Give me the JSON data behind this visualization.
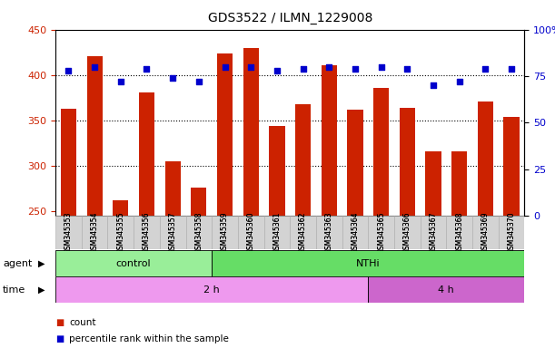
{
  "title": "GDS3522 / ILMN_1229008",
  "samples": [
    "GSM345353",
    "GSM345354",
    "GSM345355",
    "GSM345356",
    "GSM345357",
    "GSM345358",
    "GSM345359",
    "GSM345360",
    "GSM345361",
    "GSM345362",
    "GSM345363",
    "GSM345364",
    "GSM345365",
    "GSM345366",
    "GSM345367",
    "GSM345368",
    "GSM345369",
    "GSM345370"
  ],
  "counts": [
    363,
    421,
    262,
    381,
    305,
    276,
    424,
    430,
    344,
    368,
    411,
    362,
    386,
    364,
    316,
    316,
    371,
    354
  ],
  "percentiles": [
    78,
    80,
    72,
    79,
    74,
    72,
    80,
    80,
    78,
    79,
    80,
    79,
    80,
    79,
    70,
    72,
    79,
    79
  ],
  "agent_groups": [
    {
      "label": "control",
      "start": 0,
      "end": 6,
      "color": "#99ee99"
    },
    {
      "label": "NTHi",
      "start": 6,
      "end": 18,
      "color": "#66dd66"
    }
  ],
  "time_groups": [
    {
      "label": "2 h",
      "start": 0,
      "end": 12,
      "color": "#ee99ee"
    },
    {
      "label": "4 h",
      "start": 12,
      "end": 18,
      "color": "#cc66cc"
    }
  ],
  "ylim_left": [
    245,
    450
  ],
  "ylim_right": [
    0,
    100
  ],
  "yticks_left": [
    250,
    300,
    350,
    400,
    450
  ],
  "yticks_right": [
    0,
    25,
    50,
    75,
    100
  ],
  "ytick_labels_right": [
    "0",
    "25",
    "50",
    "75",
    "100%"
  ],
  "bar_color": "#cc2200",
  "dot_color": "#0000cc",
  "grid_color": "#000000",
  "background_color": "#ffffff",
  "bar_width": 0.6,
  "dot_size": 25
}
